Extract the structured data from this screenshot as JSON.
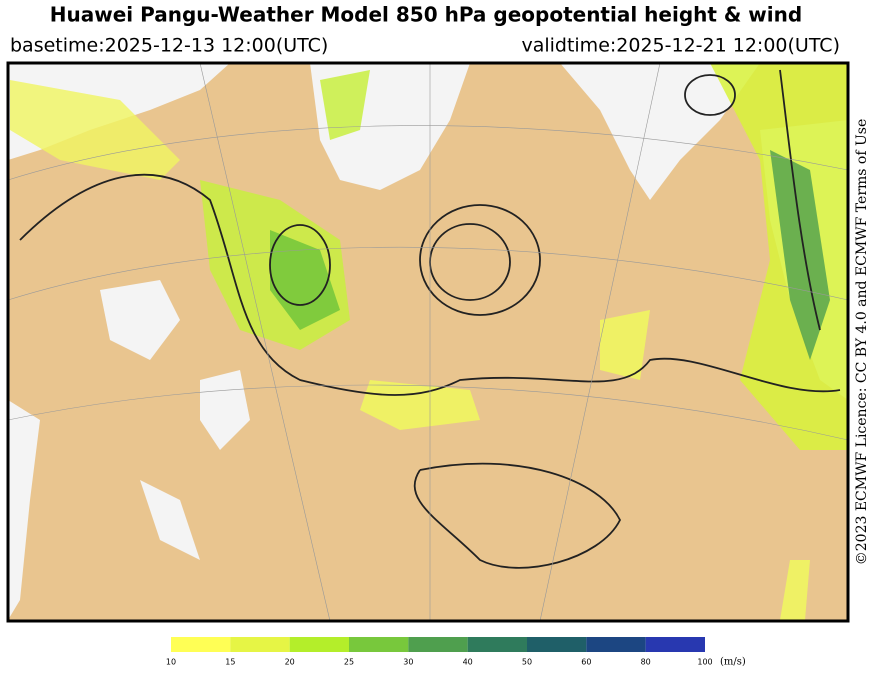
{
  "header": {
    "title": "Huawei Pangu-Weather Model 850 hPa geopotential height & wind",
    "basetime": "basetime:2025-12-13 12:00(UTC)",
    "validtime": "validtime:2025-12-21 12:00(UTC)"
  },
  "colorbar": {
    "ticks": [
      10,
      15,
      20,
      25,
      30,
      40,
      50,
      60,
      80,
      100
    ],
    "colors": [
      "#ffff55",
      "#e6f545",
      "#b4ee2a",
      "#78c83c",
      "#4f9f4e",
      "#2f7b5c",
      "#1f5f68",
      "#1c4682",
      "#2838b0"
    ],
    "unit": "(m/s)"
  },
  "credit": "©2023 ECMWF Licence: CC BY 4.0 and ECMWF Terms of Use"
}
